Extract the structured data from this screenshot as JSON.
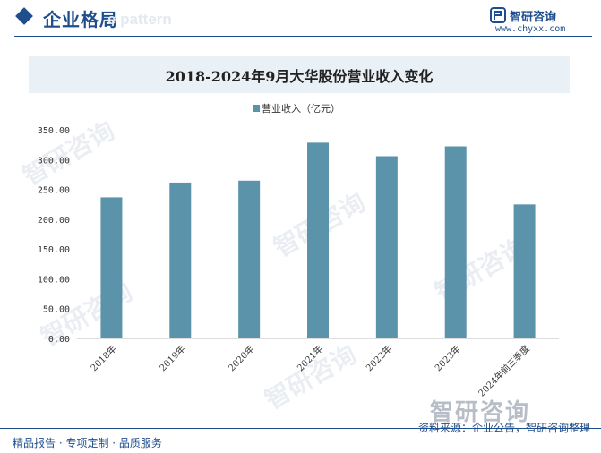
{
  "header": {
    "section_title": "企业格局",
    "watermark": "e pattern",
    "brand_name": "智研咨询",
    "brand_url": "www.chyxx.com"
  },
  "watermarks": [
    "智研咨询",
    "智研咨询",
    "智研咨询",
    "智研咨询",
    "智研咨询"
  ],
  "big_brand": "智研咨询",
  "chart_data": {
    "type": "bar",
    "title": "2018-2024年9月大华股份营业收入变化",
    "categories": [
      "2018年",
      "2019年",
      "2020年",
      "2021年",
      "2022年",
      "2023年",
      "2024年前三季度"
    ],
    "series": [
      {
        "name": "营业收入（亿元）",
        "values": [
          236.7,
          261.5,
          264.7,
          328.4,
          305.7,
          322.2,
          224.8
        ],
        "color": "#5b93aa"
      }
    ],
    "ylim": [
      0,
      350
    ],
    "yticks": [
      "0.00",
      "50.00",
      "100.00",
      "150.00",
      "200.00",
      "250.00",
      "300.00",
      "350.00"
    ],
    "legend_position": "top-center",
    "grid": false
  },
  "footer": {
    "left": "精品报告 · 专项定制 · 品质服务",
    "source": "资料来源：企业公告，智研咨询整理"
  }
}
